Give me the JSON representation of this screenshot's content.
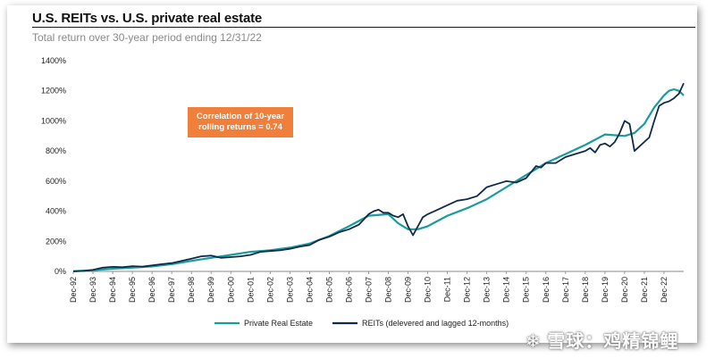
{
  "chart_data": {
    "type": "line",
    "title": "U.S. REITs vs. U.S. private real estate",
    "subtitle": "Total return over 30-year period ending 12/31/22",
    "ylim": [
      0,
      1400
    ],
    "yticks": [
      "0%",
      "200%",
      "400%",
      "600%",
      "800%",
      "1000%",
      "1200%",
      "1400%"
    ],
    "xticks": [
      "Dec-92",
      "Dec-93",
      "Dec-94",
      "Dec-95",
      "Dec-96",
      "Dec-97",
      "Dec-98",
      "Dec-99",
      "Dec-00",
      "Dec-01",
      "Dec-02",
      "Dec-03",
      "Dec-04",
      "Dec-05",
      "Dec-06",
      "Dec-07",
      "Dec-08",
      "Dec-09",
      "Dec-10",
      "Dec-11",
      "Dec-12",
      "Dec-13",
      "Dec-14",
      "Dec-15",
      "Dec-16",
      "Dec-17",
      "Dec-18",
      "Dec-19",
      "Dec-20",
      "Dec-21",
      "Dec-22"
    ],
    "grid": false,
    "legend_position": "bottom",
    "annotation": "Correlation of 10-year rolling returns = 0.74",
    "series": [
      {
        "name": "Private Real Estate",
        "color": "#1a9c9c",
        "x": [
          1992,
          1993,
          1994,
          1995,
          1996,
          1997,
          1998,
          1999,
          2000,
          2001,
          2002,
          2003,
          2004,
          2005,
          2006,
          2007,
          2008,
          2008.5,
          2009,
          2009.5,
          2010,
          2011,
          2012,
          2013,
          2014,
          2015,
          2016,
          2017,
          2018,
          2019,
          2020,
          2020.5,
          2021,
          2021.5,
          2022,
          2022.25,
          2022.5,
          2022.75,
          2023
        ],
        "values": [
          2,
          8,
          18,
          25,
          33,
          48,
          70,
          90,
          110,
          130,
          140,
          158,
          185,
          235,
          300,
          370,
          380,
          320,
          280,
          280,
          300,
          370,
          420,
          480,
          560,
          640,
          720,
          780,
          840,
          910,
          900,
          920,
          980,
          1090,
          1170,
          1200,
          1210,
          1200,
          1170
        ]
      },
      {
        "name": "REITs (delevered and lagged 12-months)",
        "color": "#0f2a4a",
        "x": [
          1992,
          1992.5,
          1993,
          1993.5,
          1994,
          1994.5,
          1995,
          1995.5,
          1996,
          1996.5,
          1997,
          1997.5,
          1998,
          1998.5,
          1999,
          1999.5,
          2000,
          2000.5,
          2001,
          2001.5,
          2002,
          2002.5,
          2003,
          2003.5,
          2004,
          2004.5,
          2005,
          2005.5,
          2006,
          2006.5,
          2007,
          2007.25,
          2007.5,
          2007.75,
          2008,
          2008.25,
          2008.5,
          2008.75,
          2009,
          2009.25,
          2009.5,
          2009.75,
          2010,
          2010.5,
          2011,
          2011.5,
          2012,
          2012.5,
          2013,
          2013.5,
          2014,
          2014.5,
          2015,
          2015.25,
          2015.5,
          2015.75,
          2016,
          2016.5,
          2017,
          2017.5,
          2018,
          2018.25,
          2018.5,
          2018.75,
          2019,
          2019.25,
          2019.5,
          2019.75,
          2020,
          2020.25,
          2020.5,
          2020.75,
          2021,
          2021.25,
          2021.5,
          2021.75,
          2022,
          2022.25,
          2022.5,
          2022.75,
          2023
        ],
        "values": [
          0,
          3,
          10,
          25,
          30,
          28,
          35,
          32,
          40,
          48,
          55,
          70,
          85,
          100,
          105,
          90,
          95,
          100,
          110,
          130,
          135,
          140,
          150,
          165,
          175,
          210,
          230,
          260,
          280,
          310,
          380,
          400,
          410,
          390,
          390,
          370,
          360,
          380,
          300,
          240,
          300,
          360,
          380,
          410,
          440,
          470,
          480,
          500,
          560,
          580,
          600,
          590,
          620,
          660,
          700,
          690,
          720,
          720,
          760,
          780,
          800,
          820,
          790,
          840,
          850,
          830,
          860,
          920,
          1000,
          980,
          800,
          830,
          860,
          890,
          1000,
          1100,
          1120,
          1130,
          1150,
          1180,
          1250
        ]
      }
    ]
  }
}
